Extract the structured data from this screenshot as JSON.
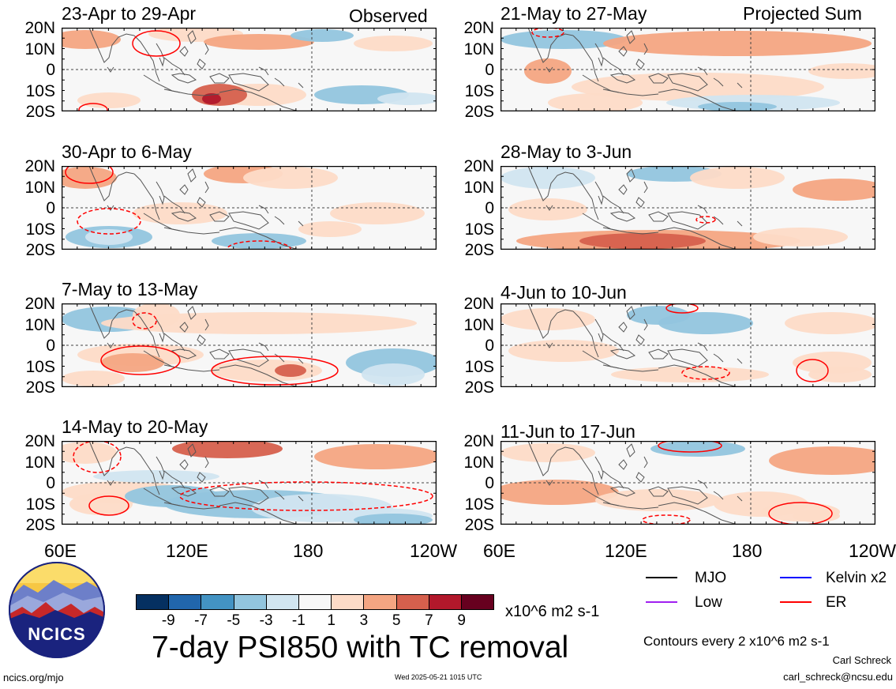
{
  "panels": [
    {
      "title": "23-Apr to 29-Apr",
      "tag": "Observed"
    },
    {
      "title": "21-May to 27-May",
      "tag": "Projected Sum"
    },
    {
      "title": "30-Apr to 6-May",
      "tag": ""
    },
    {
      "title": "28-May to 3-Jun",
      "tag": ""
    },
    {
      "title": "7-May to 13-May",
      "tag": ""
    },
    {
      "title": "4-Jun to 10-Jun",
      "tag": ""
    },
    {
      "title": "14-May to 20-May",
      "tag": ""
    },
    {
      "title": "11-Jun to 17-Jun",
      "tag": ""
    }
  ],
  "lat_labels": [
    "20N",
    "10N",
    "0",
    "10S",
    "20S"
  ],
  "lon_labels": [
    "60E",
    "120E",
    "180",
    "120W"
  ],
  "colorbar": {
    "ticks": [
      "-9",
      "-7",
      "-5",
      "-3",
      "-1",
      "1",
      "3",
      "5",
      "7",
      "9"
    ],
    "colors": [
      "#053061",
      "#2166ac",
      "#4393c3",
      "#92c5de",
      "#d1e5f0",
      "#f7f7f7",
      "#fddbc7",
      "#f4a582",
      "#d6604d",
      "#b2182b",
      "#67001f"
    ],
    "units": "x10^6 m2 s-1"
  },
  "legend": [
    {
      "label": "MJO",
      "color": "#000000"
    },
    {
      "label": "Kelvin x2",
      "color": "#0000ff"
    },
    {
      "label": "Low",
      "color": "#a020f0"
    },
    {
      "label": "ER",
      "color": "#ff0000"
    }
  ],
  "main_title": "7-day PSI850 with TC removal",
  "contours_note": "Contours every 2 x10^6 m2 s-1",
  "author": "Carl Schreck",
  "email": "carl_schreck@ncsu.edu",
  "logo_text": "NCICS",
  "url": "ncics.org/mjo",
  "timestamp": "Wed 2025-05-21 1015 UTC"
}
